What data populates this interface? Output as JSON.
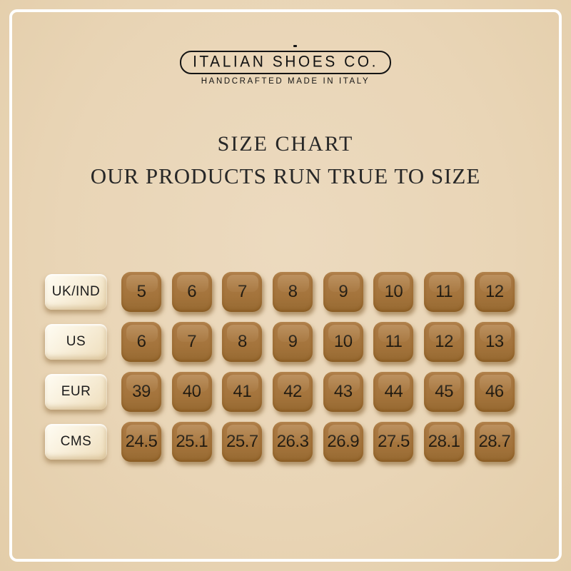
{
  "brand": {
    "name": "ITALIAN SHOES CO.",
    "tagline": "HANDCRAFTED MADE IN ITALY"
  },
  "heading": {
    "title": "SIZE CHART",
    "subtitle": "OUR PRODUCTS RUN TRUE TO SIZE"
  },
  "chart_data": {
    "type": "table",
    "title": "SIZE CHART",
    "row_labels": [
      "UK/IND",
      "US",
      "EUR",
      "CMS"
    ],
    "rows": [
      {
        "label": "UK/IND",
        "sizes": [
          "5",
          "6",
          "7",
          "8",
          "9",
          "10",
          "11",
          "12"
        ]
      },
      {
        "label": "US",
        "sizes": [
          "6",
          "7",
          "8",
          "9",
          "10",
          "11",
          "12",
          "13"
        ]
      },
      {
        "label": "EUR",
        "sizes": [
          "39",
          "40",
          "41",
          "42",
          "43",
          "44",
          "45",
          "46"
        ]
      },
      {
        "label": "CMS",
        "sizes": [
          "24.5",
          "25.1",
          "25.7",
          "26.3",
          "26.9",
          "27.5",
          "28.1",
          "28.7"
        ]
      }
    ]
  },
  "colors": {
    "background": "#e9d6b8",
    "frame_line": "#ffffff",
    "size_button_brown": "#a3743c",
    "label_key_cream": "#f7eed8",
    "button_text": "#1f1910",
    "heading_text": "#272727",
    "logo_ink": "#121212"
  }
}
